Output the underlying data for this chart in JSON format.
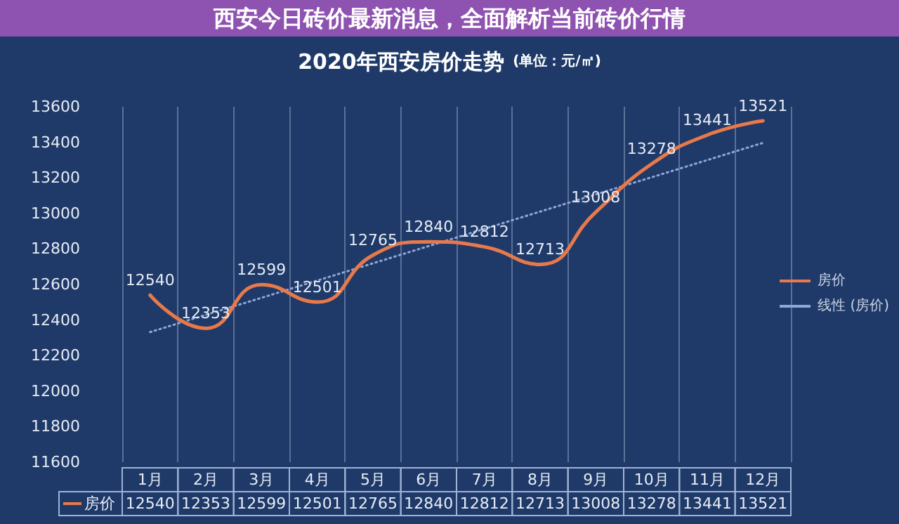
{
  "chart_data": {
    "type": "line",
    "title": "2020年西安房价走势",
    "subtitle": "(单位：元/㎡)",
    "categories": [
      "1月",
      "2月",
      "3月",
      "4月",
      "5月",
      "6月",
      "7月",
      "8月",
      "9月",
      "10月",
      "11月",
      "12月"
    ],
    "series": [
      {
        "name": "房价",
        "color": "#e8794a",
        "values": [
          12540,
          12353,
          12599,
          12501,
          12765,
          12840,
          12812,
          12713,
          13008,
          13278,
          13441,
          13521
        ],
        "value_labels": [
          "12540",
          "12353",
          "12599",
          "12501",
          "12765",
          "12840",
          "12812",
          "12713",
          "13008",
          "13278",
          "13441",
          "13521"
        ]
      },
      {
        "name": "线性 (房价)",
        "color": "#8fa6d6",
        "line_style": "dotted",
        "values": [
          12332,
          12429,
          12525,
          12622,
          12719,
          12816,
          12913,
          13010,
          13107,
          13203,
          13300,
          13397
        ]
      }
    ],
    "ylim": [
      11600,
      13600
    ],
    "yticks": [
      11600,
      11800,
      12000,
      12200,
      12400,
      12600,
      12800,
      13000,
      13200,
      13400,
      13600
    ],
    "grid": "x",
    "legend": "right",
    "marker": "none",
    "line_style": "solid",
    "annotations": [
      "西安今日砖价最新消息，全面解析当前砖价行情"
    ]
  }
}
